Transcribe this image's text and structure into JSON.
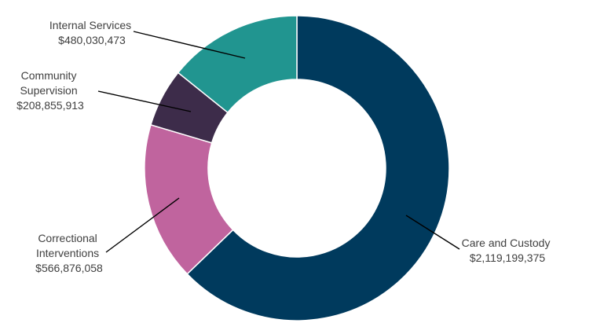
{
  "chart_data": {
    "type": "pie",
    "style": "donut",
    "categories": [
      "Care and Custody",
      "Correctional Interventions",
      "Community Supervision",
      "Internal Services"
    ],
    "values": [
      2119199375,
      566876058,
      208855913,
      480030473
    ],
    "value_labels": [
      "$2,119,199,375",
      "$566,876,058",
      "$208,855,913",
      "$480,030,473"
    ],
    "colors": [
      "#003a5d",
      "#c0649e",
      "#3d2c4a",
      "#219590"
    ],
    "title": "",
    "legend": "none",
    "data_labels": "outside with leader lines"
  },
  "labels": {
    "care_custody": {
      "line1": "Care and Custody",
      "value": "$2,119,199,375"
    },
    "correctional_interventions": {
      "line1": "Correctional",
      "line2": "Interventions",
      "value": "$566,876,058"
    },
    "community_supervision": {
      "line1": "Community",
      "line2": "Supervision",
      "value": "$208,855,913"
    },
    "internal_services": {
      "line1": "Internal Services",
      "value": "$480,030,473"
    }
  }
}
